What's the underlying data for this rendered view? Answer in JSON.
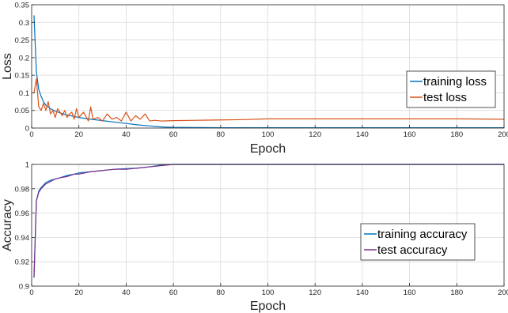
{
  "chart_data": [
    {
      "type": "line",
      "xlabel": "Epoch",
      "ylabel": "Loss",
      "xlim": [
        0,
        200
      ],
      "ylim": [
        0,
        0.35
      ],
      "xticks": [
        0,
        20,
        40,
        60,
        80,
        100,
        120,
        140,
        160,
        180,
        200
      ],
      "yticks": [
        0,
        0.05,
        0.1,
        0.15,
        0.2,
        0.25,
        0.3,
        0.35
      ],
      "grid": true,
      "legend_position": "right",
      "series": [
        {
          "name": "training loss",
          "color": "#0072BD",
          "x": [
            1,
            2,
            3,
            4,
            5,
            6,
            8,
            10,
            12,
            15,
            18,
            20,
            25,
            30,
            35,
            40,
            45,
            50,
            55,
            60,
            70,
            80,
            100,
            120,
            140,
            160,
            180,
            200
          ],
          "y": [
            0.32,
            0.16,
            0.11,
            0.09,
            0.075,
            0.065,
            0.055,
            0.048,
            0.043,
            0.037,
            0.033,
            0.03,
            0.025,
            0.021,
            0.017,
            0.013,
            0.009,
            0.006,
            0.003,
            0.002,
            0.0015,
            0.001,
            0.001,
            0.001,
            0.001,
            0.001,
            0.001,
            0.001
          ]
        },
        {
          "name": "test loss",
          "color": "#D95319",
          "x": [
            1,
            2,
            3,
            4,
            5,
            6,
            7,
            8,
            9,
            10,
            11,
            12,
            13,
            14,
            15,
            16,
            17,
            18,
            19,
            20,
            22,
            24,
            25,
            26,
            28,
            30,
            32,
            34,
            36,
            38,
            40,
            42,
            44,
            46,
            48,
            50,
            52,
            55,
            60,
            70,
            80,
            90,
            100,
            110,
            120,
            140,
            160,
            180,
            200
          ],
          "y": [
            0.1,
            0.14,
            0.06,
            0.05,
            0.07,
            0.05,
            0.075,
            0.04,
            0.05,
            0.03,
            0.055,
            0.045,
            0.035,
            0.05,
            0.03,
            0.04,
            0.045,
            0.025,
            0.055,
            0.03,
            0.045,
            0.02,
            0.06,
            0.025,
            0.03,
            0.02,
            0.04,
            0.025,
            0.03,
            0.02,
            0.045,
            0.02,
            0.035,
            0.025,
            0.04,
            0.02,
            0.022,
            0.02,
            0.021,
            0.022,
            0.023,
            0.024,
            0.026,
            0.026,
            0.026,
            0.026,
            0.026,
            0.026,
            0.025
          ]
        }
      ]
    },
    {
      "type": "line",
      "xlabel": "Epoch",
      "ylabel": "Accuracy",
      "xlim": [
        0,
        200
      ],
      "ylim": [
        0.9,
        1
      ],
      "xticks": [
        0,
        20,
        40,
        60,
        80,
        100,
        120,
        140,
        160,
        180,
        200
      ],
      "yticks": [
        0.9,
        0.92,
        0.94,
        0.96,
        0.98,
        1
      ],
      "grid": true,
      "legend_position": "right",
      "series": [
        {
          "name": "training accuracy",
          "color": "#0072BD",
          "x": [
            1,
            2,
            3,
            4,
            5,
            6,
            8,
            10,
            12,
            15,
            18,
            20,
            25,
            30,
            35,
            40,
            45,
            50,
            55,
            60,
            70,
            80,
            100,
            120,
            140,
            160,
            180,
            200
          ],
          "y": [
            0.907,
            0.97,
            0.978,
            0.981,
            0.983,
            0.985,
            0.987,
            0.988,
            0.989,
            0.991,
            0.992,
            0.993,
            0.994,
            0.995,
            0.996,
            0.9965,
            0.997,
            0.998,
            0.9995,
            1,
            1,
            1,
            1,
            1,
            1,
            1,
            1,
            1
          ]
        },
        {
          "name": "test accuracy",
          "color": "#7E2F8E",
          "x": [
            1,
            2,
            3,
            4,
            5,
            6,
            8,
            10,
            12,
            15,
            18,
            20,
            25,
            30,
            35,
            40,
            45,
            50,
            55,
            60,
            70,
            80,
            100,
            120,
            140,
            160,
            180,
            200
          ],
          "y": [
            0.907,
            0.97,
            0.977,
            0.98,
            0.982,
            0.984,
            0.986,
            0.988,
            0.989,
            0.99,
            0.992,
            0.992,
            0.994,
            0.995,
            0.996,
            0.996,
            0.997,
            0.998,
            0.999,
            1,
            1,
            1,
            1,
            1,
            1,
            1,
            1,
            1
          ]
        }
      ]
    }
  ]
}
